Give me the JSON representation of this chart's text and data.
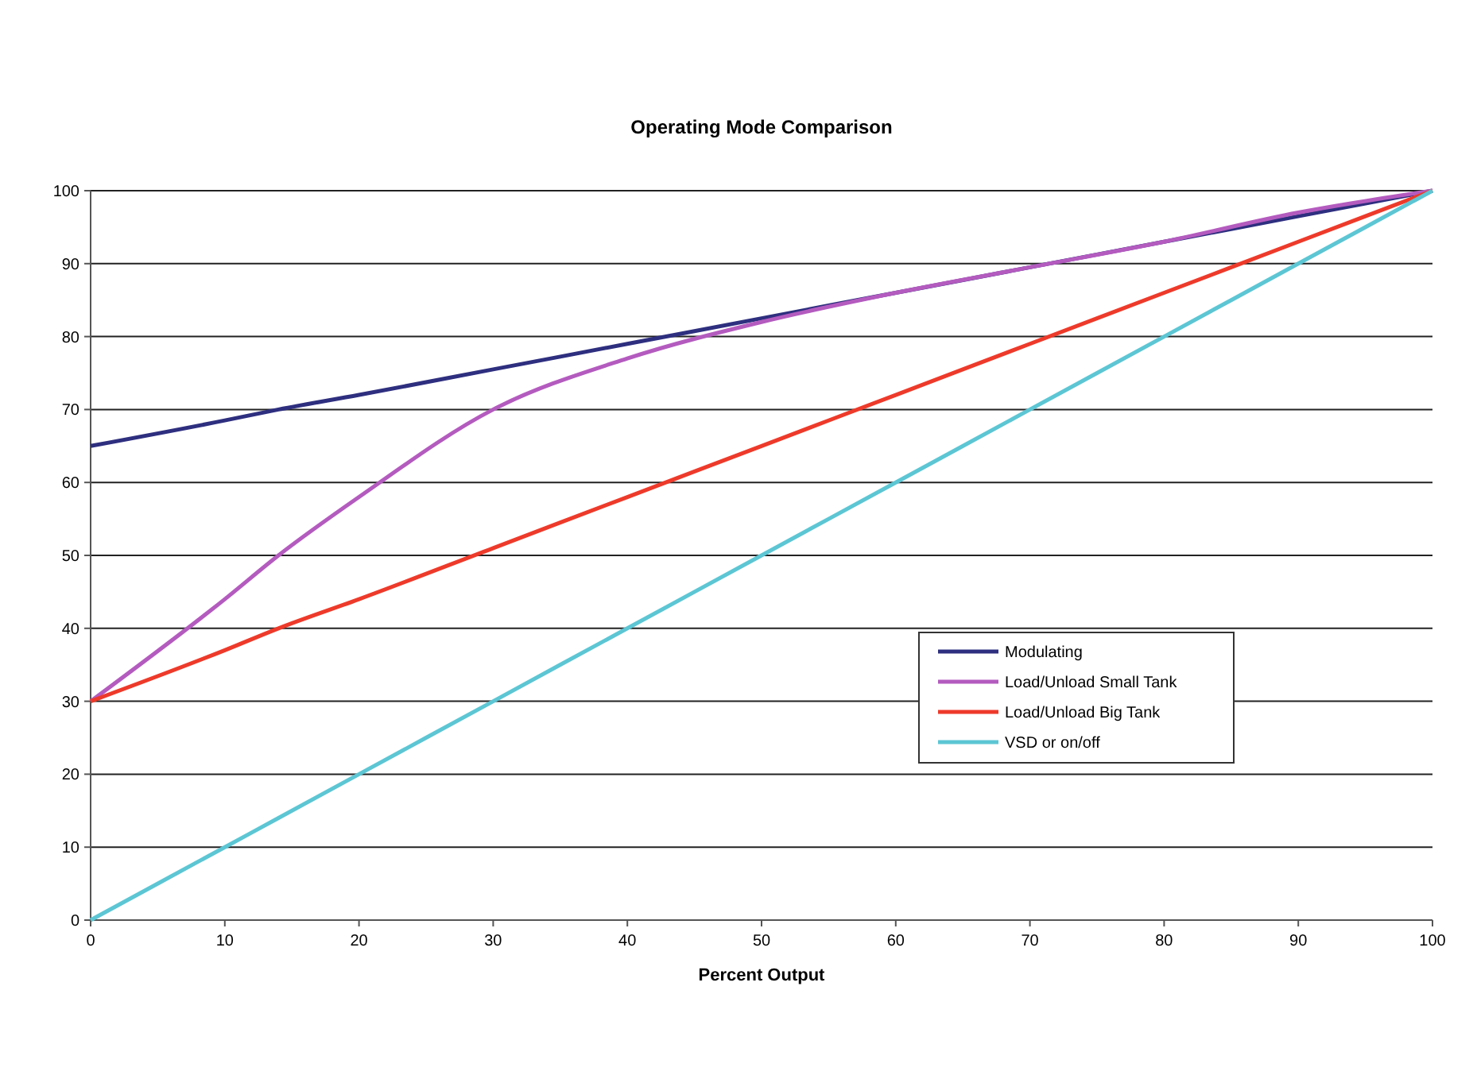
{
  "chart_data": {
    "type": "line",
    "title": "Operating Mode Comparison",
    "xlabel": "Percent Output",
    "x": [
      0,
      10,
      14,
      20,
      30,
      40,
      50,
      60,
      70,
      80,
      90,
      100
    ],
    "series": [
      {
        "name": "Modulating",
        "color": "#2e2f7f",
        "values": [
          65,
          68.5,
          70,
          72,
          75.5,
          79,
          82.5,
          86,
          89.5,
          93,
          96.5,
          100
        ]
      },
      {
        "name": "Load/Unload Small Tank",
        "color": "#b45bbf",
        "values": [
          30,
          44,
          50,
          58,
          70,
          77,
          82,
          86,
          89.5,
          93,
          97,
          100
        ]
      },
      {
        "name": "Load/Unload Big Tank",
        "color": "#ee3a2a",
        "values": [
          30,
          37,
          40,
          44,
          51,
          58,
          65,
          72,
          79,
          86,
          93,
          100
        ]
      },
      {
        "name": "VSD or on/off",
        "color": "#5cc6d4",
        "values": [
          0,
          10,
          14,
          20,
          30,
          40,
          50,
          60,
          70,
          80,
          90,
          100
        ]
      }
    ],
    "xlim": [
      0,
      100
    ],
    "xticks": [
      0,
      10,
      20,
      30,
      40,
      50,
      60,
      70,
      80,
      90,
      100
    ],
    "ylim": [
      0,
      100
    ],
    "yticks": [
      0,
      10,
      20,
      30,
      40,
      50,
      60,
      70,
      80,
      90,
      100
    ],
    "grid": "y",
    "legend": "right",
    "marker": "none",
    "line_style": "solid"
  }
}
